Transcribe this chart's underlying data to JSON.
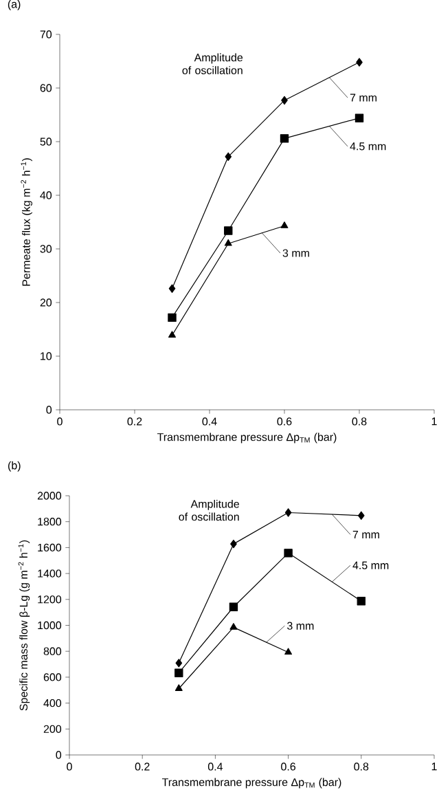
{
  "chart_data": [
    {
      "type": "line",
      "title": "(a)",
      "xlabel": "Transmembrane pressure Δp$_{TM}$ (bar)",
      "ylabel": "Permeate flux (kg m$^{−2}$ h$^{−1}$)",
      "annotations": [
        "Amplitude of oscillation"
      ],
      "x": [
        0.3,
        0.45,
        0.6,
        0.8
      ],
      "xlim": [
        0,
        1
      ],
      "ylim": [
        0,
        70
      ],
      "xticks": [
        0,
        0.2,
        0.4,
        0.6,
        0.8,
        1
      ],
      "yticks": [
        0,
        10,
        20,
        30,
        40,
        50,
        60,
        70
      ],
      "line_style": "solid",
      "series": [
        {
          "name": "7 mm",
          "color": "#000000",
          "marker": "diamond",
          "values": [
            22.6,
            47.2,
            57.7,
            64.8
          ]
        },
        {
          "name": "4.5 mm",
          "color": "#000000",
          "marker": "square",
          "values": [
            17.2,
            33.4,
            50.6,
            54.4
          ]
        },
        {
          "name": "3 mm",
          "color": "#000000",
          "marker": "triangle",
          "values": [
            13.9,
            31.0,
            34.3,
            null
          ]
        }
      ]
    },
    {
      "type": "line",
      "title": "(b)",
      "xlabel": "Transmembrane pressure Δp$_{TM}$ (bar)",
      "ylabel": "Specific mass flow β-Lg (g m$^{−2}$ h$^{−1}$)",
      "annotations": [
        "Amplitude of oscillation"
      ],
      "x": [
        0.3,
        0.45,
        0.6,
        0.8
      ],
      "xlim": [
        0,
        1
      ],
      "ylim": [
        0,
        2000
      ],
      "xticks": [
        0,
        0.2,
        0.4,
        0.6,
        0.8,
        1
      ],
      "yticks": [
        0,
        200,
        400,
        600,
        800,
        1000,
        1200,
        1400,
        1600,
        1800,
        2000
      ],
      "line_style": "solid",
      "series": [
        {
          "name": "7 mm",
          "color": "#000000",
          "marker": "diamond",
          "values": [
            709,
            1628,
            1870,
            1847
          ]
        },
        {
          "name": "4.5 mm",
          "color": "#000000",
          "marker": "square",
          "values": [
            633,
            1142,
            1558,
            1187
          ]
        },
        {
          "name": "3 mm",
          "color": "#000000",
          "marker": "triangle",
          "values": [
            512,
            985,
            792,
            null
          ]
        }
      ]
    }
  ]
}
